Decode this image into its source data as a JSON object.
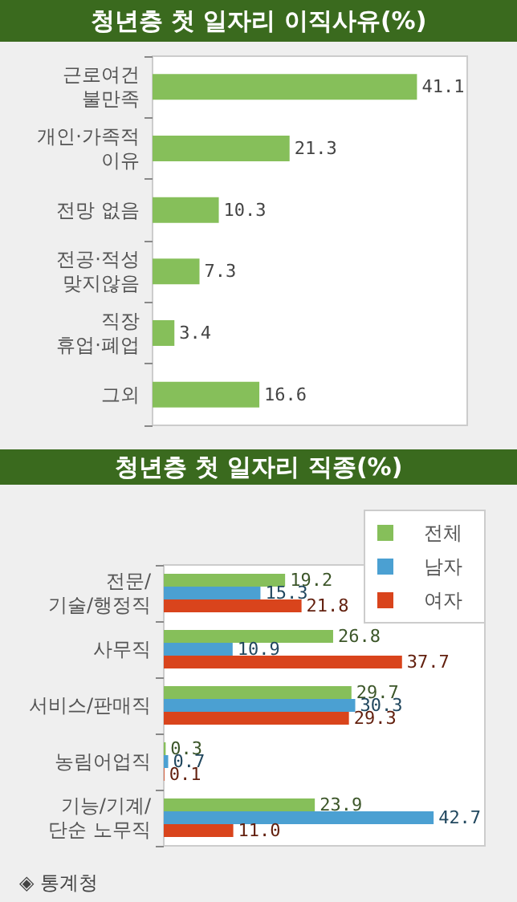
{
  "chart_data": [
    {
      "type": "bar",
      "orientation": "horizontal",
      "title": "청년층 첫 일자리 이직사유(%)",
      "categories": [
        "근로여건\n불만족",
        "개인·가족적\n이유",
        "전망 없음",
        "전공·적성\n맞지않음",
        "직장\n휴업·폐업",
        "그외"
      ],
      "values": [
        41.1,
        21.3,
        10.3,
        7.3,
        3.4,
        16.6
      ],
      "color": "#86bf5a",
      "data_labels": true,
      "grid": false,
      "legend": false
    },
    {
      "type": "bar",
      "orientation": "horizontal",
      "title": "청년층 첫 일자리 직종(%)",
      "categories": [
        "전문/\n기술/행정직",
        "사무직",
        "서비스/판매직",
        "농림어업직",
        "기능/기계/\n단순 노무직"
      ],
      "series": [
        {
          "name": "전체",
          "color": "#86bf5a",
          "values": [
            19.2,
            26.8,
            29.7,
            0.3,
            23.9
          ],
          "value_labels": [
            "19.2",
            "26.8",
            "29.7",
            "0.3",
            "23.9"
          ]
        },
        {
          "name": "남자",
          "color": "#4ba0d2",
          "values": [
            15.3,
            10.9,
            30.3,
            0.7,
            42.7
          ],
          "value_labels": [
            "15.3",
            "10.9",
            "30.3",
            "0.7",
            "42.7"
          ]
        },
        {
          "name": "여자",
          "color": "#d9441c",
          "values": [
            21.8,
            37.7,
            29.3,
            0.1,
            11.0
          ],
          "value_labels": [
            "21.8",
            "37.7",
            "29.3",
            "0.1",
            "11.0"
          ]
        }
      ],
      "grid": false,
      "legend": "top right",
      "annotations": [
        "◈ 통계청"
      ]
    }
  ]
}
